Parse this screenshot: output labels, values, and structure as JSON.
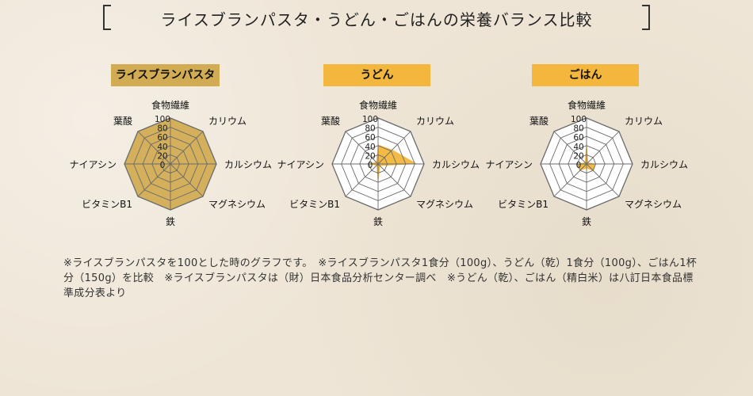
{
  "title": "ライスブランパスタ・うどん・ごはんの栄養バランス比較",
  "axes": [
    "食物繊維",
    "カリウム",
    "カルシウム",
    "マグネシウム",
    "鉄",
    "ビタミンB1",
    "ナイアシン",
    "葉酸"
  ],
  "tick_labels": [
    "100",
    "80",
    "60",
    "40",
    "20",
    "0"
  ],
  "colors": {
    "rice_bran": "#d4b05c",
    "rice_bran_tag": "#d2ac52",
    "udon_fill": "#f2b73c",
    "udon_tag": "#f2b73c",
    "gohan_tag": "#f2b73c",
    "grid": "#6a6a6a"
  },
  "chart_data": [
    {
      "type": "radar",
      "title": "ライスブランパスタ",
      "categories": [
        "食物繊維",
        "カリウム",
        "カルシウム",
        "マグネシウム",
        "鉄",
        "ビタミンB1",
        "ナイアシン",
        "葉酸"
      ],
      "values": [
        100,
        100,
        100,
        100,
        100,
        100,
        100,
        100
      ],
      "range": [
        0,
        100
      ],
      "ticks": [
        0,
        20,
        40,
        60,
        80,
        100
      ]
    },
    {
      "type": "radar",
      "title": "うどん",
      "categories": [
        "食物繊維",
        "カリウム",
        "カルシウム",
        "マグネシウム",
        "鉄",
        "ビタミンB1",
        "ナイアシン",
        "葉酸"
      ],
      "values": [
        42,
        44,
        85,
        6,
        47,
        5,
        25,
        6
      ],
      "range": [
        0,
        100
      ],
      "ticks": [
        0,
        20,
        40,
        60,
        80,
        100
      ]
    },
    {
      "type": "radar",
      "title": "ごはん",
      "categories": [
        "食物繊維",
        "カリウム",
        "カルシウム",
        "マグネシウム",
        "鉄",
        "ビタミンB1",
        "ナイアシン",
        "葉酸"
      ],
      "values": [
        55,
        5,
        20,
        22,
        10,
        20,
        20,
        5
      ],
      "range": [
        0,
        100
      ],
      "ticks": [
        0,
        20,
        40,
        60,
        80,
        100
      ]
    }
  ],
  "note": "※ライスブランパスタを100とした時のグラフです。　※ライスブランパスタ1食分（100g）、うどん（乾）1食分（100g）、ごはん1杯分（150g）を比較　※ライスブランパスタは（財）日本食品分析センター調べ　※うどん（乾）、ごはん（精白米）は八訂日本食品標準成分表より"
}
